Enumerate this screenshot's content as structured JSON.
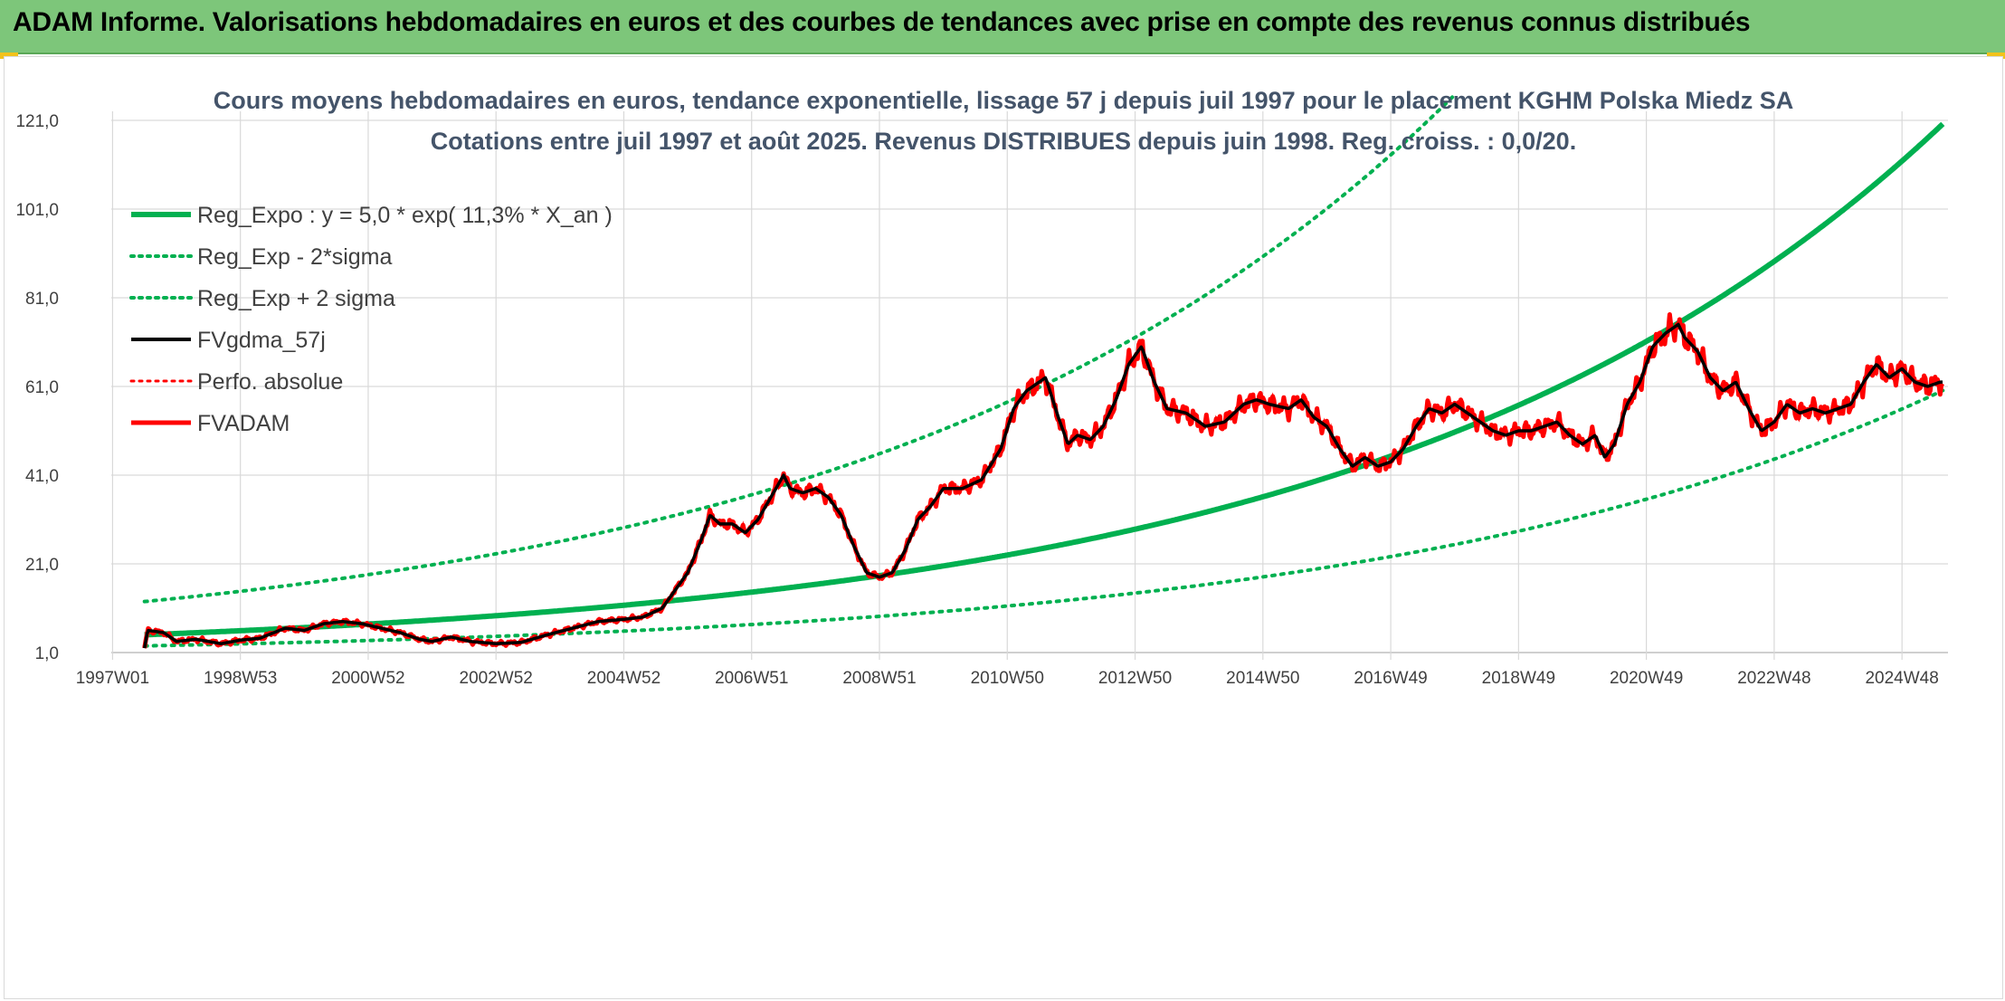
{
  "banner": {
    "title": "ADAM Informe. Valorisations hebdomadaires en euros et des courbes de tendances avec prise en compte des revenus connus distribués"
  },
  "colors": {
    "banner_bg": "#7dc67a",
    "green": "#00b050",
    "black": "#000000",
    "red": "#ff0000",
    "grid": "#d9d9d9"
  },
  "chart_data": {
    "type": "line",
    "title_line1": "Cours moyens hebdomadaires en euros, tendance exponentielle, lissage 57 j depuis juil 1997 pour le placement KGHM Polska Miedz SA",
    "title_line2": "Cotations entre juil 1997 et août 2025. Revenus DISTRIBUES depuis juin 1998. Reg. croiss. : 0,0/20.",
    "xlabel": "",
    "ylabel": "",
    "x_range": [
      1997.5,
      2025.65
    ],
    "ylim": [
      1,
      121
    ],
    "y_ticks": [
      "1,0",
      "21,0",
      "41,0",
      "61,0",
      "81,0",
      "101,0",
      "121,0"
    ],
    "y_tick_values": [
      1,
      21,
      41,
      61,
      81,
      101,
      121
    ],
    "x_ticks": [
      {
        "label": "1997W01",
        "x": 1997.0
      },
      {
        "label": "1998W53",
        "x": 1999.0
      },
      {
        "label": "2000W52",
        "x": 2001.0
      },
      {
        "label": "2002W52",
        "x": 2003.0
      },
      {
        "label": "2004W52",
        "x": 2005.0
      },
      {
        "label": "2006W51",
        "x": 2007.0
      },
      {
        "label": "2008W51",
        "x": 2009.0
      },
      {
        "label": "2010W50",
        "x": 2011.0
      },
      {
        "label": "2012W50",
        "x": 2013.0
      },
      {
        "label": "2014W50",
        "x": 2015.0
      },
      {
        "label": "2016W49",
        "x": 2017.0
      },
      {
        "label": "2018W49",
        "x": 2019.0
      },
      {
        "label": "2020W49",
        "x": 2021.0
      },
      {
        "label": "2022W48",
        "x": 2023.0
      },
      {
        "label": "2024W48",
        "x": 2025.0
      }
    ],
    "grid": true,
    "legend_position": "top-left",
    "legend": [
      {
        "name": "Reg_Expo : y = 5,0 * exp( 11,3% *  X_an )",
        "color": "#00b050",
        "style": "solid",
        "width": 6
      },
      {
        "name": "Reg_Exp - 2*sigma",
        "color": "#00b050",
        "style": "dotted",
        "width": 4
      },
      {
        "name": "Reg_Exp + 2 sigma",
        "color": "#00b050",
        "style": "dotted",
        "width": 4
      },
      {
        "name": "FVgdma_57j",
        "color": "#000000",
        "style": "solid",
        "width": 4
      },
      {
        "name": "Perfo. absolue",
        "color": "#ff0000",
        "style": "dotted",
        "width": 3
      },
      {
        "name": "FVADAM",
        "color": "#ff0000",
        "style": "solid",
        "width": 5
      }
    ],
    "regression": {
      "a": 5.0,
      "b": 0.113,
      "x0": 1997.5,
      "minus_factor": 0.5,
      "plus_factor": 2.5
    },
    "series_points": [
      [
        1997.5,
        2.0
      ],
      [
        1997.55,
        6.0
      ],
      [
        1997.8,
        5.5
      ],
      [
        1998.0,
        3.5
      ],
      [
        1998.3,
        4.0
      ],
      [
        1998.7,
        3.0
      ],
      [
        1999.0,
        3.8
      ],
      [
        1999.3,
        4.2
      ],
      [
        1999.7,
        6.5
      ],
      [
        2000.0,
        6.0
      ],
      [
        2000.3,
        7.5
      ],
      [
        2000.6,
        8.0
      ],
      [
        2000.9,
        7.5
      ],
      [
        2001.2,
        6.5
      ],
      [
        2001.5,
        5.5
      ],
      [
        2001.8,
        4.0
      ],
      [
        2002.0,
        3.5
      ],
      [
        2002.3,
        4.5
      ],
      [
        2002.6,
        3.5
      ],
      [
        2003.0,
        3.0
      ],
      [
        2003.4,
        3.3
      ],
      [
        2003.8,
        5.0
      ],
      [
        2004.2,
        6.5
      ],
      [
        2004.6,
        8.0
      ],
      [
        2005.0,
        8.5
      ],
      [
        2005.3,
        9.0
      ],
      [
        2005.6,
        11.0
      ],
      [
        2005.8,
        15.0
      ],
      [
        2006.0,
        19.0
      ],
      [
        2006.2,
        26.0
      ],
      [
        2006.35,
        32.0
      ],
      [
        2006.5,
        30.0
      ],
      [
        2006.7,
        30.0
      ],
      [
        2006.9,
        28.0
      ],
      [
        2007.1,
        31.0
      ],
      [
        2007.3,
        36.0
      ],
      [
        2007.5,
        41.0
      ],
      [
        2007.6,
        38.0
      ],
      [
        2007.8,
        37.0
      ],
      [
        2008.0,
        38.0
      ],
      [
        2008.2,
        36.0
      ],
      [
        2008.4,
        32.0
      ],
      [
        2008.6,
        25.0
      ],
      [
        2008.8,
        19.0
      ],
      [
        2009.0,
        18.0
      ],
      [
        2009.2,
        19.0
      ],
      [
        2009.4,
        24.0
      ],
      [
        2009.6,
        31.0
      ],
      [
        2009.8,
        34.0
      ],
      [
        2010.0,
        38.0
      ],
      [
        2010.3,
        38.0
      ],
      [
        2010.6,
        40.0
      ],
      [
        2010.9,
        47.0
      ],
      [
        2011.1,
        56.0
      ],
      [
        2011.3,
        60.0
      ],
      [
        2011.6,
        63.0
      ],
      [
        2011.8,
        54.0
      ],
      [
        2011.95,
        48.0
      ],
      [
        2012.1,
        50.0
      ],
      [
        2012.3,
        49.0
      ],
      [
        2012.5,
        52.0
      ],
      [
        2012.7,
        58.0
      ],
      [
        2012.9,
        66.0
      ],
      [
        2013.1,
        70.0
      ],
      [
        2013.3,
        62.0
      ],
      [
        2013.5,
        56.0
      ],
      [
        2013.8,
        55.0
      ],
      [
        2014.1,
        52.0
      ],
      [
        2014.4,
        53.0
      ],
      [
        2014.7,
        57.0
      ],
      [
        2014.9,
        58.0
      ],
      [
        2015.1,
        57.0
      ],
      [
        2015.4,
        56.0
      ],
      [
        2015.6,
        58.0
      ],
      [
        2015.8,
        54.0
      ],
      [
        2016.0,
        52.0
      ],
      [
        2016.2,
        47.0
      ],
      [
        2016.4,
        43.0
      ],
      [
        2016.6,
        45.0
      ],
      [
        2016.8,
        43.0
      ],
      [
        2017.0,
        44.0
      ],
      [
        2017.2,
        47.0
      ],
      [
        2017.4,
        52.0
      ],
      [
        2017.6,
        56.0
      ],
      [
        2017.8,
        55.0
      ],
      [
        2018.0,
        57.0
      ],
      [
        2018.2,
        55.0
      ],
      [
        2018.4,
        53.0
      ],
      [
        2018.6,
        51.0
      ],
      [
        2018.8,
        50.0
      ],
      [
        2019.0,
        51.0
      ],
      [
        2019.2,
        51.0
      ],
      [
        2019.4,
        52.0
      ],
      [
        2019.6,
        53.0
      ],
      [
        2019.8,
        50.0
      ],
      [
        2020.0,
        48.0
      ],
      [
        2020.2,
        50.0
      ],
      [
        2020.35,
        45.0
      ],
      [
        2020.5,
        48.0
      ],
      [
        2020.7,
        57.0
      ],
      [
        2020.9,
        62.0
      ],
      [
        2021.1,
        70.0
      ],
      [
        2021.3,
        73.0
      ],
      [
        2021.5,
        75.0
      ],
      [
        2021.6,
        72.0
      ],
      [
        2021.8,
        69.0
      ],
      [
        2022.0,
        63.0
      ],
      [
        2022.2,
        60.0
      ],
      [
        2022.4,
        62.0
      ],
      [
        2022.6,
        56.0
      ],
      [
        2022.8,
        51.0
      ],
      [
        2023.0,
        53.0
      ],
      [
        2023.2,
        57.0
      ],
      [
        2023.4,
        55.0
      ],
      [
        2023.6,
        56.0
      ],
      [
        2023.8,
        55.0
      ],
      [
        2024.0,
        56.0
      ],
      [
        2024.2,
        57.0
      ],
      [
        2024.4,
        62.0
      ],
      [
        2024.6,
        66.0
      ],
      [
        2024.8,
        63.0
      ],
      [
        2025.0,
        65.0
      ],
      [
        2025.2,
        62.0
      ],
      [
        2025.4,
        61.0
      ],
      [
        2025.6,
        62.0
      ],
      [
        2025.65,
        62.0
      ]
    ]
  }
}
